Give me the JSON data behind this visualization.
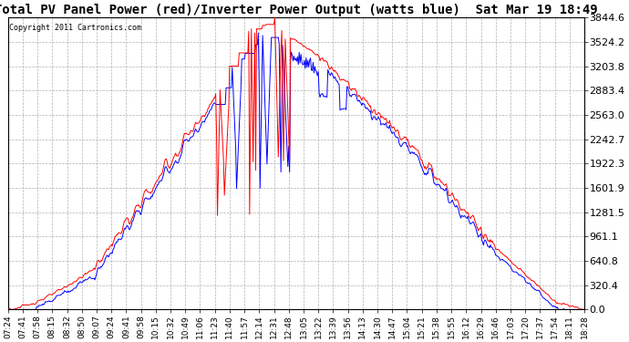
{
  "title": "Total PV Panel Power (red)/Inverter Power Output (watts blue)  Sat Mar 19 18:49",
  "copyright_text": "Copyright 2011 Cartronics.com",
  "y_ticks": [
    0.0,
    320.4,
    640.8,
    961.1,
    1281.5,
    1601.9,
    1922.3,
    2242.7,
    2563.0,
    2883.4,
    3203.8,
    3524.2,
    3844.6
  ],
  "x_labels": [
    "07:24",
    "07:41",
    "07:58",
    "08:15",
    "08:32",
    "08:50",
    "09:07",
    "09:24",
    "09:41",
    "09:58",
    "10:15",
    "10:32",
    "10:49",
    "11:06",
    "11:23",
    "11:40",
    "11:57",
    "12:14",
    "12:31",
    "12:48",
    "13:05",
    "13:22",
    "13:39",
    "13:56",
    "14:13",
    "14:30",
    "14:47",
    "15:04",
    "15:21",
    "15:38",
    "15:55",
    "16:12",
    "16:29",
    "16:46",
    "17:03",
    "17:20",
    "17:37",
    "17:54",
    "18:11",
    "18:28"
  ],
  "pv_color": "#ff0000",
  "inv_color": "#0000ff",
  "bg_color": "#ffffff",
  "grid_color": "#b0b0b0",
  "title_fontsize": 10,
  "ylabel_fontsize": 8,
  "xlabel_fontsize": 6.5
}
